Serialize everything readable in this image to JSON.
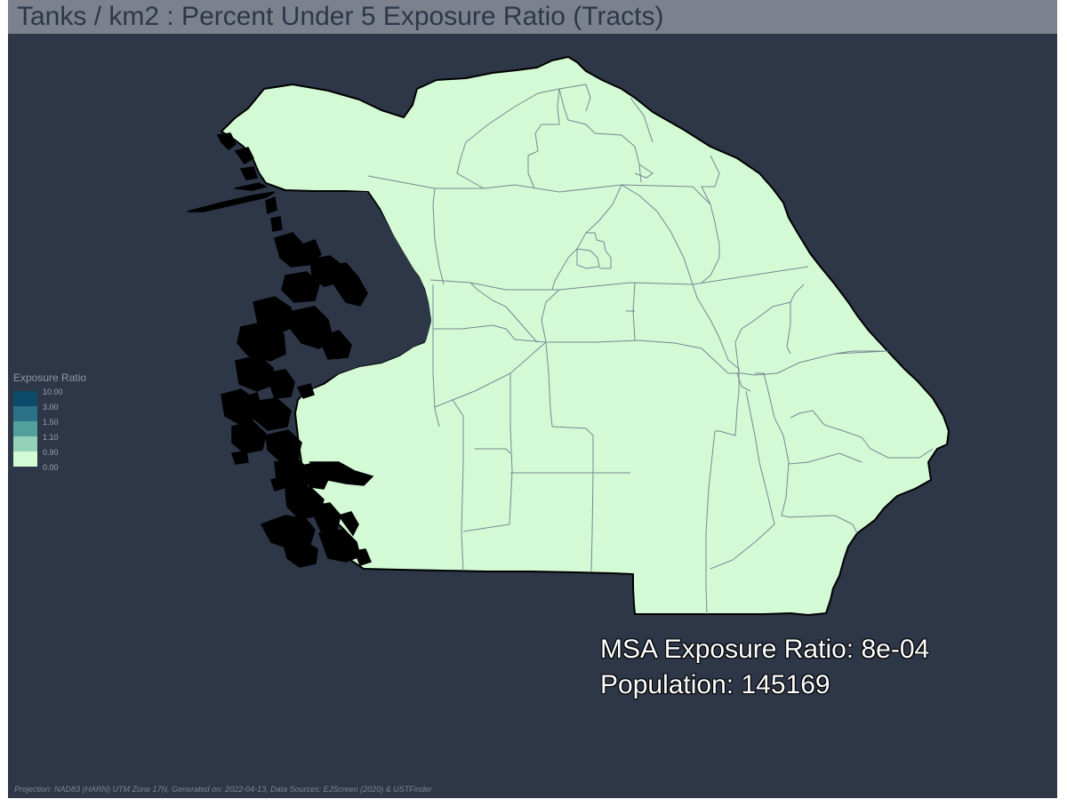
{
  "map": {
    "title": "Tanks / km2 : Percent Under 5 Exposure Ratio (Tracts)",
    "background_color": "#2d3748",
    "title_bar_color": "#7b828d",
    "tract_fill_color": "#d4fad5",
    "tract_border_color": "#7a8594",
    "coast_islands_color": "#000000"
  },
  "legend": {
    "title": "Exposure Ratio",
    "classes": [
      {
        "label": "10.00",
        "color": "#0d4a6b"
      },
      {
        "label": "3.00",
        "color": "#2a7186"
      },
      {
        "label": "1.50",
        "color": "#52a09b"
      },
      {
        "label": "1.10",
        "color": "#93d2b8"
      },
      {
        "label": "0.90",
        "color": "#d4fad5"
      },
      {
        "label": "0.00",
        "color": ""
      }
    ]
  },
  "stats": {
    "msa_ratio_line": "MSA Exposure Ratio: 8e-04",
    "population_line": "Population: 145169"
  },
  "footer": {
    "text": "Projection: NAD83 (HARN) UTM Zone 17N, Generated on: 2022-04-13, Data Sources: EJScreen (2020) & USTFinder"
  }
}
